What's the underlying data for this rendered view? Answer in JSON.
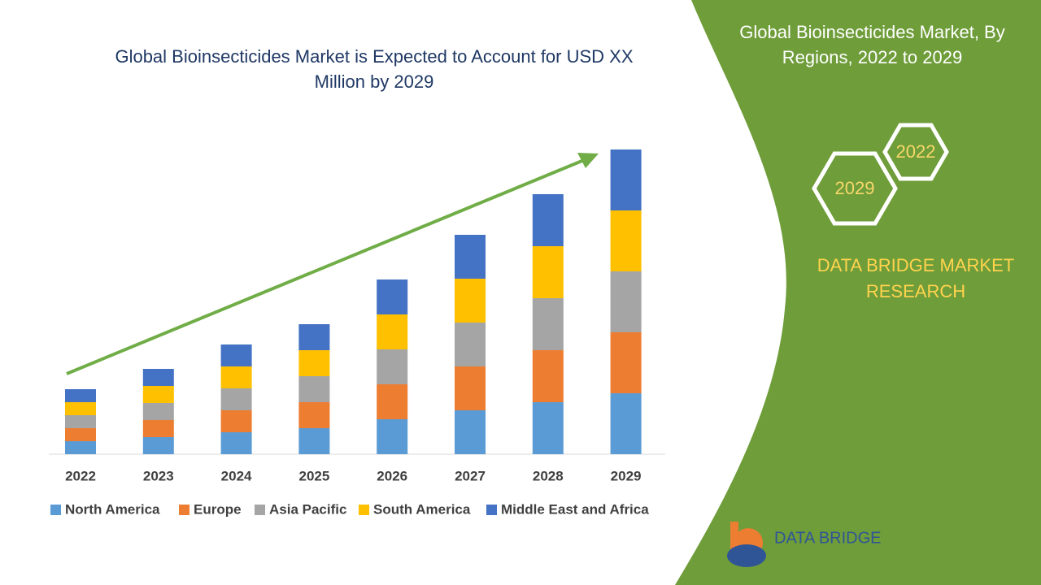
{
  "chart_data": {
    "type": "stacked-bar",
    "title": "Global Bioinsecticides Market is Expected to Account for USD XX Million by 2029",
    "categories": [
      "2022",
      "2023",
      "2024",
      "2025",
      "2026",
      "2027",
      "2028",
      "2029"
    ],
    "series": [
      {
        "name": "North America",
        "color": "#5b9bd5",
        "values": [
          16,
          21,
          27,
          32,
          43,
          54,
          64,
          75
        ]
      },
      {
        "name": "Europe",
        "color": "#ed7d31",
        "values": [
          16,
          21,
          27,
          32,
          43,
          54,
          64,
          75
        ]
      },
      {
        "name": "Asia Pacific",
        "color": "#a5a5a5",
        "values": [
          16,
          21,
          27,
          32,
          43,
          54,
          64,
          75
        ]
      },
      {
        "name": "South America",
        "color": "#ffc000",
        "values": [
          16,
          21,
          27,
          32,
          43,
          54,
          64,
          75
        ]
      },
      {
        "name": "Middle East and Africa",
        "color": "#4472c4",
        "values": [
          16,
          21,
          27,
          32,
          43,
          54,
          64,
          75
        ]
      }
    ],
    "legend": "bottom"
  },
  "panel": {
    "title": "Global Bioinsecticides Market, By Regions, 2022 to 2029",
    "hex_years": [
      "2022",
      "2029"
    ],
    "brand": "DATA BRIDGE MARKET RESEARCH",
    "logo_text": "DATA BRIDGE"
  }
}
